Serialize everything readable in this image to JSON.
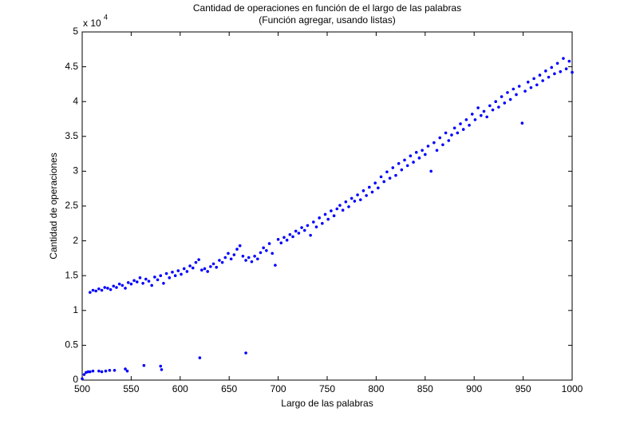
{
  "chart_data": {
    "type": "scatter",
    "title": "Cantidad de operaciones en función de el largo de las palabras",
    "subtitle": "(Función agregar, usando listas)",
    "x_label": "Largo de las palabras",
    "y_label": "Cantidad de operaciones",
    "y_multiplier": {
      "base": "x 10",
      "exponent": "4"
    },
    "color": "#0000ff",
    "xlim": [
      500,
      1000
    ],
    "xticks": [
      500,
      550,
      600,
      650,
      700,
      750,
      800,
      850,
      900,
      950,
      1000
    ],
    "ylim": [
      0,
      5
    ],
    "yticks": [
      0,
      0.5,
      1,
      1.5,
      2,
      2.5,
      3,
      3.5,
      4,
      4.5,
      5
    ],
    "x": [
      508,
      511,
      514,
      517,
      520,
      523,
      526,
      529,
      532,
      535,
      538,
      541,
      544,
      547,
      550,
      553,
      556,
      559,
      562,
      565,
      568,
      571,
      574,
      577,
      580,
      583,
      586,
      589,
      592,
      595,
      598,
      601,
      604,
      607,
      610,
      613,
      616,
      619,
      622,
      625,
      628,
      631,
      634,
      637,
      640,
      643,
      646,
      649,
      652,
      655,
      658,
      661,
      664,
      667,
      670,
      673,
      676,
      679,
      682,
      685,
      688,
      691,
      694,
      697,
      700,
      703,
      706,
      709,
      712,
      715,
      718,
      721,
      724,
      727,
      730,
      733,
      736,
      739,
      742,
      745,
      748,
      751,
      754,
      757,
      760,
      763,
      766,
      769,
      772,
      775,
      778,
      781,
      784,
      787,
      790,
      793,
      796,
      799,
      802,
      805,
      808,
      811,
      814,
      817,
      820,
      823,
      826,
      829,
      832,
      835,
      838,
      841,
      844,
      847,
      850,
      853,
      856,
      859,
      862,
      865,
      868,
      871,
      874,
      877,
      880,
      883,
      886,
      889,
      892,
      895,
      898,
      901,
      904,
      907,
      910,
      913,
      916,
      919,
      922,
      925,
      928,
      931,
      934,
      937,
      940,
      943,
      946,
      949,
      952,
      955,
      958,
      961,
      964,
      967,
      970,
      973,
      976,
      979,
      982,
      985,
      988,
      991,
      994,
      997,
      1000,
      500,
      502,
      504,
      506,
      508,
      511,
      517,
      520,
      524,
      528,
      533,
      544,
      546,
      563,
      580,
      581,
      620,
      667
    ],
    "values": [
      1.26,
      1.29,
      1.28,
      1.31,
      1.29,
      1.33,
      1.32,
      1.3,
      1.35,
      1.33,
      1.38,
      1.36,
      1.32,
      1.4,
      1.38,
      1.43,
      1.41,
      1.47,
      1.39,
      1.45,
      1.42,
      1.36,
      1.48,
      1.44,
      1.5,
      1.39,
      1.53,
      1.47,
      1.55,
      1.5,
      1.57,
      1.52,
      1.6,
      1.56,
      1.64,
      1.61,
      1.69,
      1.73,
      1.58,
      1.6,
      1.56,
      1.63,
      1.67,
      1.62,
      1.72,
      1.69,
      1.76,
      1.82,
      1.74,
      1.8,
      1.88,
      1.93,
      1.78,
      1.72,
      1.76,
      1.7,
      1.78,
      1.74,
      1.83,
      1.9,
      1.86,
      1.96,
      1.82,
      1.65,
      2.02,
      1.97,
      2.05,
      2.01,
      2.09,
      2.06,
      2.14,
      2.11,
      2.19,
      2.15,
      2.22,
      2.08,
      2.27,
      2.2,
      2.33,
      2.25,
      2.38,
      2.31,
      2.43,
      2.36,
      2.46,
      2.51,
      2.44,
      2.56,
      2.49,
      2.61,
      2.57,
      2.66,
      2.59,
      2.72,
      2.65,
      2.77,
      2.7,
      2.83,
      2.76,
      2.92,
      2.85,
      2.99,
      2.9,
      3.05,
      2.94,
      3.11,
      3.02,
      3.16,
      3.08,
      3.22,
      3.13,
      3.27,
      3.19,
      3.3,
      3.24,
      3.36,
      3.0,
      3.41,
      3.3,
      3.48,
      3.38,
      3.55,
      3.44,
      3.52,
      3.62,
      3.55,
      3.68,
      3.6,
      3.74,
      3.66,
      3.82,
      3.74,
      3.91,
      3.8,
      3.86,
      3.78,
      3.94,
      3.88,
      4.0,
      3.92,
      4.07,
      3.98,
      4.13,
      4.03,
      4.18,
      4.1,
      4.22,
      3.69,
      4.15,
      4.28,
      4.2,
      4.33,
      4.24,
      4.38,
      4.3,
      4.44,
      4.35,
      4.49,
      4.4,
      4.55,
      4.43,
      4.62,
      4.47,
      4.58,
      4.42,
      0.02,
      0.08,
      0.11,
      0.12,
      0.12,
      0.13,
      0.13,
      0.12,
      0.13,
      0.14,
      0.14,
      0.16,
      0.13,
      0.21,
      0.2,
      0.15,
      0.32,
      0.39
    ]
  }
}
